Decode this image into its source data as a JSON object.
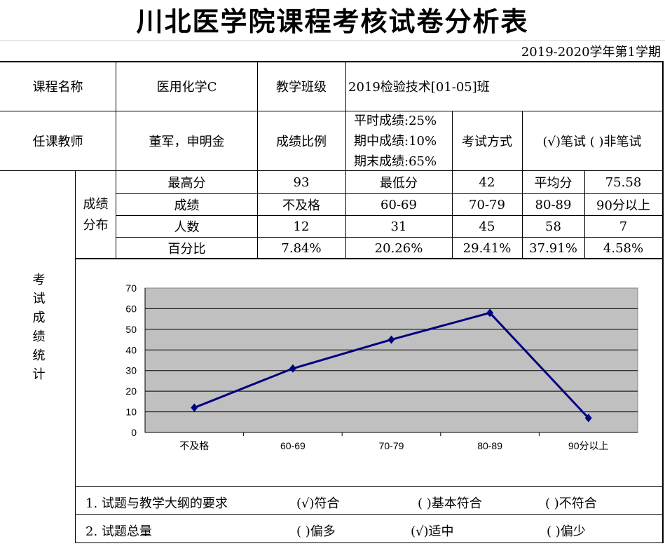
{
  "title": "川北医学院课程考核试卷分析表",
  "semester": "2019-2020学年第1学期",
  "info": {
    "course_label": "课程名称",
    "course": "医用化学C",
    "class_label": "教学班级",
    "class": "2019检验技术[01-05]班",
    "teacher_label": "任课教师",
    "teacher": "董军，申明金",
    "ratio_label": "成绩比例",
    "ratio": [
      "平时成绩:25%",
      "期中成绩:10%",
      "期末成绩:65%"
    ],
    "exam_label": "考试方式",
    "exam": "(√)笔试 ( )非笔试"
  },
  "stats": {
    "section_label": "考试成绩统计",
    "dist_label": "成绩分布",
    "max_label": "最高分",
    "max": "93",
    "min_label": "最低分",
    "min": "42",
    "avg_label": "平均分",
    "avg": "75.58",
    "grade_label": "成绩",
    "grades": [
      "不及格",
      "60-69",
      "70-79",
      "80-89",
      "90分以上"
    ],
    "count_label": "人数",
    "counts": [
      "12",
      "31",
      "45",
      "58",
      "7"
    ],
    "pct_label": "百分比",
    "pcts": [
      "7.84%",
      "20.26%",
      "29.41%",
      "37.91%",
      "4.58%"
    ]
  },
  "chart_data": {
    "type": "line",
    "categories": [
      "不及格",
      "60-69",
      "70-79",
      "80-89",
      "90分以上"
    ],
    "values": [
      12,
      31,
      45,
      58,
      7
    ],
    "ylim": [
      0,
      70
    ],
    "yticks": [
      "0",
      "10",
      "20",
      "30",
      "40",
      "50",
      "60",
      "70"
    ],
    "grid": true,
    "colors": {
      "line": "#000080",
      "plot_bg": "#c0c0c0"
    }
  },
  "questions": [
    {
      "label": "1. 试题与教学大纲的要求",
      "options": [
        "(√)符合",
        "( )基本符合",
        "( )不符合"
      ]
    },
    {
      "label": "2. 试题总量",
      "options": [
        "( )偏多",
        "(√)适中",
        "( )偏少"
      ]
    }
  ]
}
